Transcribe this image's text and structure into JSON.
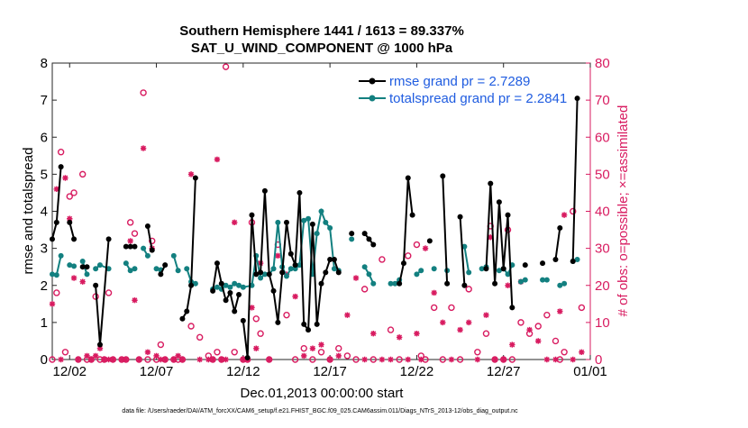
{
  "chart_data": {
    "type": "line",
    "title": [
      "Southern Hemisphere 1441 / 1613 = 89.337%",
      "SAT_U_WIND_COMPONENT @ 1000 hPa"
    ],
    "xlabel": "Dec.01,2013 00:00:00 start",
    "ylabel_left": "rmse and totalspread",
    "ylabel_right": "# of obs: o=possible; ×=assimilated",
    "x_range_days": [
      0,
      31
    ],
    "ylim_left": [
      0,
      8
    ],
    "ylim_right": [
      0,
      80
    ],
    "x_ticks": [
      {
        "day": 1,
        "label": "12/02"
      },
      {
        "day": 6,
        "label": "12/07"
      },
      {
        "day": 11,
        "label": "12/12"
      },
      {
        "day": 16,
        "label": "12/17"
      },
      {
        "day": 21,
        "label": "12/22"
      },
      {
        "day": 26,
        "label": "12/27"
      },
      {
        "day": 31,
        "label": "01/01"
      }
    ],
    "y_ticks_left": [
      "0",
      "1",
      "2",
      "3",
      "4",
      "5",
      "6",
      "7",
      "8"
    ],
    "y_ticks_right": [
      "0",
      "10",
      "20",
      "30",
      "40",
      "50",
      "60",
      "70",
      "80"
    ],
    "footer": "data file: /Users/raeder/DAI/ATM_forcXX/CAM6_setup/f.e21.FHIST_BGC.f09_025.CAM6assim.011/Diags_NTrS_2013-12/obs_diag_output.nc",
    "colors": {
      "rmse": "#000000",
      "spread": "#138080",
      "obs": "#d81b60",
      "legend_text": "#1f5ce0"
    },
    "series": [
      {
        "name": "rmse grand pr = 2.7289",
        "segments": [
          [
            [
              0.0,
              3.25
            ],
            [
              0.25,
              3.7
            ],
            [
              0.5,
              5.2
            ]
          ],
          [
            [
              1.0,
              3.7
            ],
            [
              1.25,
              3.25
            ]
          ],
          [
            [
              1.75,
              2.5
            ],
            [
              2.0,
              2.5
            ]
          ],
          [
            [
              2.5,
              2.0
            ],
            [
              2.75,
              0.4
            ],
            [
              3.25,
              3.25
            ]
          ],
          [
            [
              4.25,
              3.05
            ],
            [
              4.5,
              3.05
            ],
            [
              4.75,
              3.05
            ]
          ],
          [
            [
              5.5,
              3.6
            ],
            [
              5.75,
              2.95
            ]
          ],
          [
            [
              6.25,
              2.3
            ],
            [
              6.5,
              2.55
            ]
          ],
          [
            [
              7.5,
              1.1
            ],
            [
              7.75,
              1.3
            ],
            [
              8.0,
              2.0
            ],
            [
              8.25,
              4.9
            ]
          ],
          [
            [
              9.25,
              1.85
            ],
            [
              9.5,
              2.6
            ],
            [
              9.75,
              2.05
            ],
            [
              10.0,
              1.6
            ],
            [
              10.25,
              1.8
            ],
            [
              10.5,
              1.3
            ],
            [
              10.75,
              1.75
            ]
          ],
          [
            [
              11.0,
              1.05
            ],
            [
              11.25,
              0.05
            ],
            [
              11.5,
              3.9
            ],
            [
              11.75,
              2.3
            ],
            [
              12.0,
              2.35
            ],
            [
              12.25,
              4.55
            ],
            [
              12.5,
              2.3
            ],
            [
              12.75,
              1.85
            ],
            [
              13.0,
              1.0
            ],
            [
              13.25,
              2.35
            ],
            [
              13.5,
              3.7
            ],
            [
              13.75,
              2.85
            ],
            [
              14.0,
              2.55
            ],
            [
              14.25,
              4.5
            ],
            [
              14.5,
              0.95
            ],
            [
              14.75,
              0.8
            ],
            [
              15.0,
              3.65
            ],
            [
              15.25,
              0.95
            ],
            [
              15.5,
              2.05
            ],
            [
              15.75,
              2.35
            ],
            [
              16.0,
              2.7
            ],
            [
              16.25,
              2.7
            ],
            [
              16.5,
              2.35
            ]
          ],
          [
            [
              17.25,
              3.4
            ]
          ],
          [
            [
              18.0,
              3.4
            ],
            [
              18.25,
              3.25
            ],
            [
              18.5,
              3.1
            ]
          ],
          [
            [
              20.0,
              2.05
            ],
            [
              20.25,
              2.6
            ],
            [
              20.5,
              4.9
            ],
            [
              20.75,
              3.9
            ]
          ],
          [
            [
              21.75,
              3.2
            ]
          ],
          [
            [
              22.5,
              4.95
            ],
            [
              22.75,
              2.05
            ]
          ],
          [
            [
              23.5,
              3.85
            ],
            [
              23.75,
              2.0
            ]
          ],
          [
            [
              25.0,
              2.45
            ],
            [
              25.25,
              4.75
            ],
            [
              25.5,
              2.05
            ],
            [
              25.75,
              4.25
            ],
            [
              26.0,
              2.45
            ],
            [
              26.25,
              3.9
            ],
            [
              26.5,
              1.4
            ]
          ],
          [
            [
              27.25,
              2.55
            ]
          ],
          [
            [
              28.25,
              2.6
            ]
          ],
          [
            [
              29.0,
              2.7
            ],
            [
              29.25,
              3.55
            ]
          ],
          [
            [
              30.0,
              2.65
            ],
            [
              30.25,
              7.05
            ]
          ]
        ]
      },
      {
        "name": "totalspread grand pr = 2.2841",
        "segments": [
          [
            [
              0.0,
              2.3
            ],
            [
              0.25,
              2.28
            ],
            [
              0.5,
              2.8
            ]
          ],
          [
            [
              1.0,
              2.55
            ],
            [
              1.25,
              2.52
            ]
          ],
          [
            [
              1.75,
              2.65
            ],
            [
              2.0,
              2.3
            ]
          ],
          [
            [
              2.5,
              2.45
            ],
            [
              2.75,
              2.55
            ],
            [
              3.25,
              2.45
            ]
          ],
          [
            [
              4.25,
              2.6
            ],
            [
              4.5,
              2.4
            ],
            [
              4.75,
              2.45
            ]
          ],
          [
            [
              5.25,
              3.0
            ],
            [
              5.5,
              2.8
            ]
          ],
          [
            [
              6.0,
              2.45
            ],
            [
              6.25,
              2.42
            ]
          ],
          [
            [
              7.0,
              2.8
            ],
            [
              7.25,
              2.4
            ]
          ],
          [
            [
              7.75,
              2.45
            ],
            [
              8.0,
              2.1
            ],
            [
              8.25,
              2.05
            ]
          ],
          [
            [
              9.25,
              1.9
            ],
            [
              9.5,
              1.95
            ],
            [
              9.75,
              1.9
            ],
            [
              10.0,
              2.0
            ],
            [
              10.25,
              1.95
            ],
            [
              10.5,
              2.05
            ],
            [
              10.75,
              2.0
            ]
          ],
          [
            [
              11.0,
              1.95
            ],
            [
              11.5,
              2.0
            ],
            [
              11.75,
              2.8
            ],
            [
              12.0,
              2.2
            ],
            [
              12.25,
              2.3
            ],
            [
              12.5,
              2.3
            ],
            [
              12.75,
              2.45
            ],
            [
              13.0,
              3.7
            ],
            [
              13.25,
              2.5
            ],
            [
              13.5,
              2.25
            ],
            [
              13.75,
              2.45
            ],
            [
              14.0,
              2.45
            ],
            [
              14.25,
              2.55
            ],
            [
              14.5,
              3.75
            ],
            [
              14.75,
              3.8
            ],
            [
              15.0,
              2.3
            ],
            [
              15.25,
              3.4
            ],
            [
              15.5,
              4.0
            ],
            [
              15.75,
              3.7
            ],
            [
              16.0,
              3.55
            ],
            [
              16.25,
              2.45
            ],
            [
              16.5,
              2.4
            ]
          ],
          [
            [
              17.25,
              3.25
            ]
          ],
          [
            [
              18.0,
              2.5
            ],
            [
              18.25,
              2.3
            ],
            [
              18.5,
              2.05
            ]
          ],
          [
            [
              19.5,
              2.05
            ],
            [
              19.75,
              2.05
            ],
            [
              20.0,
              2.15
            ]
          ],
          [
            [
              21.0,
              2.3
            ],
            [
              21.25,
              2.4
            ]
          ],
          [
            [
              22.0,
              2.45
            ]
          ],
          [
            [
              22.75,
              2.4
            ]
          ],
          [
            [
              23.75,
              3.05
            ],
            [
              24.0,
              2.35
            ]
          ],
          [
            [
              24.75,
              2.45
            ],
            [
              25.0,
              2.5
            ]
          ],
          [
            [
              25.75,
              2.4
            ],
            [
              26.0,
              2.45
            ],
            [
              26.25,
              2.3
            ],
            [
              26.5,
              2.55
            ]
          ],
          [
            [
              27.0,
              2.1
            ],
            [
              27.25,
              2.15
            ]
          ],
          [
            [
              28.25,
              2.15
            ],
            [
              28.5,
              2.15
            ]
          ],
          [
            [
              29.25,
              2.0
            ],
            [
              29.5,
              2.05
            ]
          ],
          [
            [
              30.0,
              2.65
            ],
            [
              30.25,
              2.7
            ]
          ]
        ]
      },
      {
        "name": "# of obs possible",
        "axis": "right",
        "marker": "circle",
        "x": [
          0.0,
          0.25,
          0.5,
          0.75,
          1.0,
          1.25,
          1.5,
          1.75,
          2.0,
          2.25,
          2.5,
          2.75,
          3.0,
          3.25,
          3.5,
          4.0,
          4.25,
          4.5,
          4.75,
          5.0,
          5.25,
          5.5,
          5.75,
          6.0,
          6.25,
          6.5,
          7.0,
          7.25,
          7.5,
          8.0,
          8.5,
          9.0,
          9.25,
          9.5,
          9.75,
          10.0,
          10.5,
          11.0,
          11.25,
          11.5,
          11.75,
          12.0,
          12.5,
          13.0,
          13.5,
          14.0,
          14.5,
          15.0,
          15.5,
          16.0,
          16.5,
          17.0,
          17.5,
          18.0,
          18.5,
          19.0,
          19.5,
          20.0,
          20.5,
          21.0,
          21.25,
          21.5,
          22.0,
          22.5,
          23.0,
          23.5,
          24.0,
          24.5,
          25.0,
          25.25,
          25.5,
          26.0,
          26.25,
          26.5,
          27.0,
          27.5,
          28.0,
          28.5,
          29.0,
          29.25,
          29.5,
          30.0,
          30.5
        ],
        "values": [
          0,
          18,
          56,
          2,
          44,
          45,
          0,
          50,
          0,
          0,
          17,
          0,
          0,
          18,
          0,
          0,
          0,
          37,
          34,
          0,
          72,
          0,
          32,
          0,
          4,
          0,
          0,
          0,
          0,
          9,
          6,
          1,
          0,
          2,
          0,
          79,
          2,
          0,
          0,
          37,
          11,
          7,
          0,
          31,
          12,
          0,
          3,
          0,
          2,
          0,
          3,
          1,
          0,
          19,
          0,
          27,
          8,
          0,
          28,
          31,
          1,
          0,
          14,
          0,
          14,
          0,
          19,
          2,
          7,
          36,
          0,
          0,
          35,
          0,
          10,
          7,
          9,
          12,
          5,
          0,
          2,
          40,
          14
        ]
      },
      {
        "name": "# of obs assimilated",
        "axis": "right",
        "marker": "asterisk",
        "x": [
          0.0,
          0.25,
          0.5,
          0.75,
          1.0,
          1.25,
          1.5,
          1.75,
          2.0,
          2.25,
          2.5,
          2.75,
          3.0,
          3.25,
          3.5,
          4.0,
          4.25,
          4.5,
          4.75,
          5.0,
          5.25,
          5.5,
          5.75,
          6.0,
          6.25,
          6.5,
          7.0,
          7.25,
          7.5,
          8.0,
          8.5,
          9.0,
          9.25,
          9.5,
          9.75,
          10.0,
          10.5,
          11.0,
          11.25,
          11.5,
          11.75,
          12.0,
          12.5,
          13.0,
          13.5,
          14.0,
          14.5,
          15.0,
          15.5,
          16.0,
          16.5,
          17.0,
          17.5,
          18.0,
          18.5,
          19.0,
          19.5,
          20.0,
          20.5,
          21.0,
          21.25,
          21.5,
          22.0,
          22.5,
          23.0,
          23.5,
          24.0,
          24.5,
          25.0,
          25.25,
          25.5,
          26.0,
          26.25,
          26.5,
          27.0,
          27.5,
          28.0,
          28.5,
          29.0,
          29.25,
          29.5,
          30.0,
          30.5
        ],
        "values": [
          15,
          46,
          0,
          49,
          38,
          22,
          0,
          21,
          1,
          0,
          1,
          3,
          0,
          0,
          0,
          0,
          0,
          32,
          16,
          0,
          57,
          2,
          30,
          1,
          0,
          0,
          0,
          1,
          0,
          50,
          0,
          0,
          0,
          54,
          0,
          0,
          37,
          0,
          0,
          14,
          3,
          26,
          0,
          28,
          23,
          17,
          1,
          3,
          4,
          0,
          1,
          12,
          22,
          0,
          7,
          0,
          0,
          6,
          0,
          7,
          0,
          30,
          18,
          10,
          0,
          8,
          10,
          0,
          12,
          33,
          0,
          0,
          20,
          4,
          21,
          8,
          5,
          0,
          0,
          13,
          39,
          0,
          2
        ]
      }
    ]
  }
}
